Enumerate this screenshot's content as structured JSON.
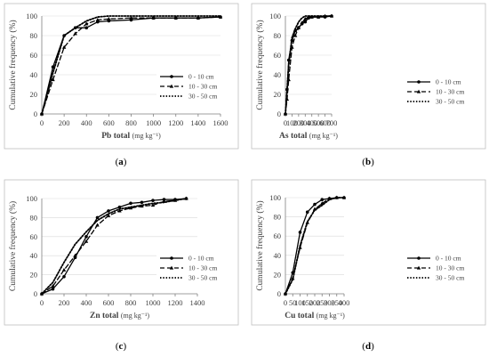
{
  "styles": {
    "solid": {
      "color": "#000000",
      "dash": "",
      "width": 1.3,
      "marker": "circle"
    },
    "dashed": {
      "color": "#000000",
      "dash": "5,3",
      "width": 1.3,
      "marker": "triangle"
    },
    "dotted": {
      "color": "#000000",
      "dash": "1.5,1.8",
      "width": 1.8,
      "marker": "none"
    }
  },
  "chart_data": [
    {
      "type": "line",
      "caption": "(a)",
      "xlabel_bold": "Pb total",
      "xlabel_unit": "(mg kg⁻¹)",
      "ylabel": "Cumulative frequency (%)",
      "xlim": [
        0,
        1600
      ],
      "ylim": [
        0,
        100
      ],
      "xticks": [
        0,
        200,
        400,
        600,
        800,
        1000,
        1200,
        1400,
        1600
      ],
      "yticks": [
        0,
        20,
        40,
        60,
        80,
        100
      ],
      "legend_position": "right",
      "series": [
        {
          "name": "0 - 10 cm",
          "style": "solid",
          "points": [
            [
              0,
              0
            ],
            [
              100,
              48
            ],
            [
              200,
              80
            ],
            [
              300,
              88
            ],
            [
              400,
              88
            ],
            [
              500,
              94
            ],
            [
              600,
              95
            ],
            [
              800,
              96
            ],
            [
              1000,
              98
            ],
            [
              1200,
              98
            ],
            [
              1400,
              98
            ],
            [
              1600,
              99
            ]
          ]
        },
        {
          "name": "10 - 30 cm",
          "style": "dashed",
          "points": [
            [
              0,
              0
            ],
            [
              100,
              35
            ],
            [
              200,
              68
            ],
            [
              300,
              82
            ],
            [
              400,
              92
            ],
            [
              500,
              96
            ],
            [
              600,
              97
            ],
            [
              800,
              98
            ],
            [
              1000,
              98
            ],
            [
              1200,
              98
            ],
            [
              1400,
              98
            ],
            [
              1600,
              99
            ]
          ]
        },
        {
          "name": "30 - 50 cm",
          "style": "dotted",
          "points": [
            [
              0,
              0
            ],
            [
              100,
              42
            ],
            [
              200,
              80
            ],
            [
              300,
              88
            ],
            [
              400,
              95
            ],
            [
              500,
              99
            ],
            [
              600,
              100
            ],
            [
              800,
              100
            ],
            [
              1000,
              100
            ],
            [
              1200,
              100
            ],
            [
              1400,
              100
            ],
            [
              1600,
              100
            ]
          ]
        }
      ]
    },
    {
      "type": "line",
      "caption": "(b)",
      "xlabel_bold": "As total",
      "xlabel_unit": "(mg kg⁻¹)",
      "ylabel": "Cumulative frequency (%)",
      "xlim": [
        0,
        700
      ],
      "ylim": [
        0,
        100
      ],
      "xticks": [
        0,
        100,
        200,
        300,
        400,
        500,
        600,
        700
      ],
      "yticks": [
        0,
        20,
        40,
        60,
        80,
        100
      ],
      "legend_position": "right",
      "series": [
        {
          "name": "0 - 10 cm",
          "style": "solid",
          "points": [
            [
              0,
              0
            ],
            [
              25,
              25
            ],
            [
              50,
              55
            ],
            [
              100,
              75
            ],
            [
              150,
              85
            ],
            [
              200,
              88
            ],
            [
              250,
              92
            ],
            [
              300,
              94
            ],
            [
              350,
              98
            ],
            [
              400,
              99
            ],
            [
              500,
              99
            ],
            [
              600,
              99
            ],
            [
              700,
              100
            ]
          ]
        },
        {
          "name": "10 - 30 cm",
          "style": "dashed",
          "points": [
            [
              0,
              0
            ],
            [
              25,
              15
            ],
            [
              50,
              35
            ],
            [
              100,
              68
            ],
            [
              150,
              80
            ],
            [
              200,
              88
            ],
            [
              250,
              93
            ],
            [
              300,
              97
            ],
            [
              350,
              99
            ],
            [
              400,
              99
            ],
            [
              500,
              99
            ],
            [
              600,
              100
            ],
            [
              700,
              100
            ]
          ]
        },
        {
          "name": "30 - 50 cm",
          "style": "dotted",
          "points": [
            [
              0,
              0
            ],
            [
              25,
              25
            ],
            [
              50,
              50
            ],
            [
              100,
              78
            ],
            [
              150,
              87
            ],
            [
              200,
              94
            ],
            [
              250,
              98
            ],
            [
              300,
              100
            ],
            [
              400,
              100
            ],
            [
              500,
              100
            ],
            [
              600,
              100
            ],
            [
              700,
              100
            ]
          ]
        }
      ]
    },
    {
      "type": "line",
      "caption": "(c)",
      "xlabel_bold": "Zn total",
      "xlabel_unit": "(mg kg⁻¹)",
      "ylabel": "Cumulative frequency (%)",
      "xlim": [
        0,
        1400
      ],
      "ylim": [
        0,
        100
      ],
      "xticks": [
        0,
        200,
        400,
        600,
        800,
        1000,
        1200,
        1400
      ],
      "yticks": [
        0,
        20,
        40,
        60,
        80,
        100
      ],
      "legend_position": "right",
      "series": [
        {
          "name": "0 - 10 cm",
          "style": "solid",
          "points": [
            [
              0,
              0
            ],
            [
              100,
              5
            ],
            [
              200,
              18
            ],
            [
              300,
              38
            ],
            [
              400,
              60
            ],
            [
              500,
              80
            ],
            [
              600,
              87
            ],
            [
              700,
              91
            ],
            [
              800,
              95
            ],
            [
              900,
              96
            ],
            [
              1000,
              98
            ],
            [
              1100,
              99
            ],
            [
              1200,
              99
            ],
            [
              1300,
              100
            ]
          ]
        },
        {
          "name": "10 - 30 cm",
          "style": "dashed",
          "points": [
            [
              0,
              0
            ],
            [
              100,
              8
            ],
            [
              200,
              25
            ],
            [
              300,
              40
            ],
            [
              400,
              55
            ],
            [
              500,
              72
            ],
            [
              600,
              82
            ],
            [
              700,
              87
            ],
            [
              800,
              90
            ],
            [
              900,
              92
            ],
            [
              1000,
              93
            ],
            [
              1100,
              97
            ],
            [
              1200,
              98
            ],
            [
              1300,
              100
            ]
          ]
        },
        {
          "name": "30 - 50 cm",
          "style": "dotted",
          "points": [
            [
              0,
              0
            ],
            [
              100,
              12
            ],
            [
              200,
              33
            ],
            [
              300,
              52
            ],
            [
              400,
              65
            ],
            [
              500,
              77
            ],
            [
              600,
              84
            ],
            [
              700,
              89
            ],
            [
              800,
              91
            ],
            [
              900,
              93
            ],
            [
              1000,
              95
            ],
            [
              1100,
              96
            ],
            [
              1200,
              98
            ],
            [
              1300,
              100
            ]
          ]
        }
      ]
    },
    {
      "type": "line",
      "caption": "(d)",
      "xlabel_bold": "Cu total",
      "xlabel_unit": "(mg kg⁻¹)",
      "ylabel": "Cumulative frequency (%)",
      "xlim": [
        0,
        400
      ],
      "ylim": [
        0,
        100
      ],
      "xticks": [
        0,
        50,
        100,
        150,
        200,
        250,
        300,
        350,
        400
      ],
      "yticks": [
        0,
        20,
        40,
        60,
        80,
        100
      ],
      "legend_position": "right",
      "series": [
        {
          "name": "0 - 10 cm",
          "style": "solid",
          "points": [
            [
              0,
              0
            ],
            [
              50,
              22
            ],
            [
              100,
              64
            ],
            [
              150,
              85
            ],
            [
              200,
              93
            ],
            [
              250,
              98
            ],
            [
              300,
              99
            ],
            [
              350,
              100
            ],
            [
              400,
              100
            ]
          ]
        },
        {
          "name": "10 - 30 cm",
          "style": "dashed",
          "points": [
            [
              0,
              0
            ],
            [
              50,
              16
            ],
            [
              100,
              48
            ],
            [
              150,
              74
            ],
            [
              200,
              88
            ],
            [
              250,
              94
            ],
            [
              300,
              99
            ],
            [
              350,
              100
            ],
            [
              400,
              100
            ]
          ]
        },
        {
          "name": "30 - 50 cm",
          "style": "dotted",
          "points": [
            [
              0,
              0
            ],
            [
              50,
              15
            ],
            [
              100,
              50
            ],
            [
              150,
              75
            ],
            [
              200,
              87
            ],
            [
              250,
              92
            ],
            [
              300,
              98
            ],
            [
              350,
              100
            ],
            [
              400,
              100
            ]
          ]
        }
      ]
    }
  ]
}
